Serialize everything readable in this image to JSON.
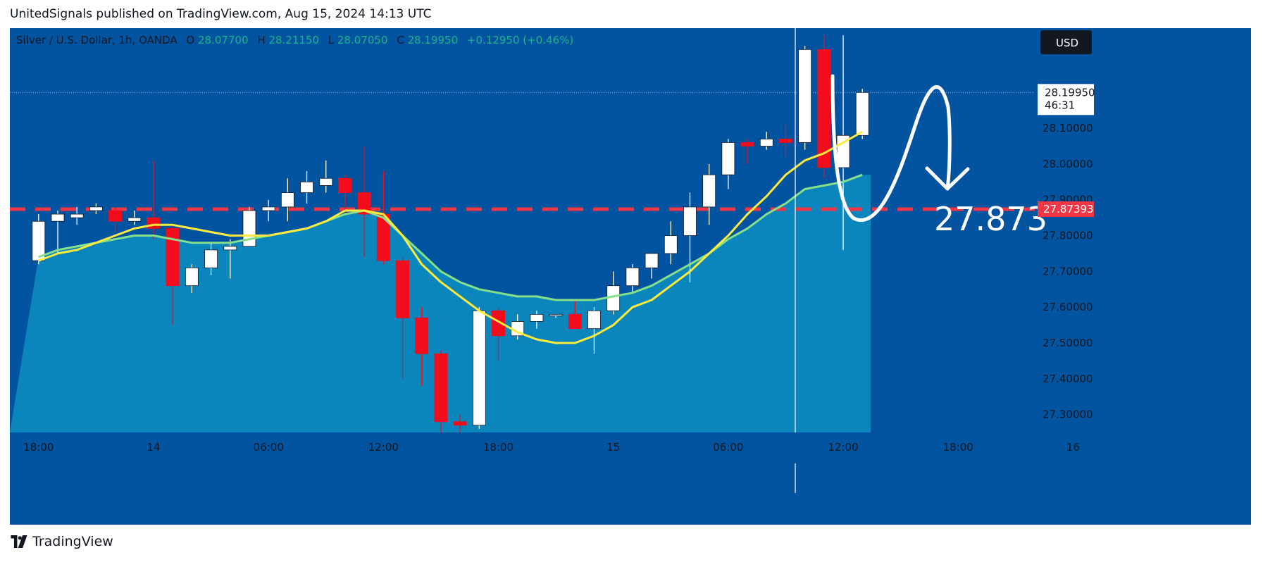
{
  "header": {
    "text": "UnitedSignals published on TradingView.com, Aug 15, 2024 14:13 UTC"
  },
  "legend": {
    "symbol": "Silver / U.S. Dollar, 1h, OANDA",
    "open_label": "O",
    "open": "28.07700",
    "high_label": "H",
    "high": "28.21150",
    "low_label": "L",
    "low": "28.07050",
    "close_label": "C",
    "close": "28.19950",
    "change": "+0.12950 (+0.46%)"
  },
  "currency_button": "USD",
  "price_tag": {
    "price": "28.19950",
    "countdown": "46:31"
  },
  "level_tag": "27.87393",
  "annotation": "27.873",
  "footer": {
    "brand": "TradingView"
  },
  "colors": {
    "background": "#0254a0",
    "bull": "#ffffff",
    "bear": "#f20c1c",
    "ema_fast": "#ffeb3b",
    "ema_slow": "#86e08a",
    "area": "#0a86bd",
    "level": "#f23645"
  },
  "chart_data": {
    "type": "candlestick",
    "ylim": [
      27.25,
      28.36
    ],
    "y_ticks": [
      27.3,
      27.4,
      27.5,
      27.6,
      27.7,
      27.8,
      27.9,
      28.0,
      28.1
    ],
    "y_tick_labels": [
      "27.30000",
      "27.40000",
      "27.50000",
      "27.60000",
      "27.70000",
      "27.80000",
      "27.90000",
      "28.00000",
      "28.10000"
    ],
    "x_index_range": [
      -1.5,
      52.0
    ],
    "x_ticks": [
      {
        "index": 0,
        "label": "18:00"
      },
      {
        "index": 6,
        "label": "14"
      },
      {
        "index": 12,
        "label": "06:00"
      },
      {
        "index": 18,
        "label": "12:00"
      },
      {
        "index": 24,
        "label": "18:00"
      },
      {
        "index": 30,
        "label": "15"
      },
      {
        "index": 36,
        "label": "06:00"
      },
      {
        "index": 42,
        "label": "12:00"
      },
      {
        "index": 48,
        "label": "18:00"
      },
      {
        "index": 54,
        "label": "16"
      }
    ],
    "level": 27.87393,
    "candles": [
      {
        "o": 27.73,
        "h": 27.86,
        "l": 27.72,
        "c": 27.84
      },
      {
        "o": 27.84,
        "h": 27.87,
        "l": 27.75,
        "c": 27.86
      },
      {
        "o": 27.85,
        "h": 27.88,
        "l": 27.83,
        "c": 27.86
      },
      {
        "o": 27.87,
        "h": 27.89,
        "l": 27.86,
        "c": 27.88
      },
      {
        "o": 27.87,
        "h": 27.88,
        "l": 27.81,
        "c": 27.84
      },
      {
        "o": 27.84,
        "h": 27.87,
        "l": 27.83,
        "c": 27.85
      },
      {
        "o": 27.85,
        "h": 28.01,
        "l": 27.79,
        "c": 27.82
      },
      {
        "o": 27.82,
        "h": 27.83,
        "l": 27.55,
        "c": 27.66
      },
      {
        "o": 27.66,
        "h": 27.72,
        "l": 27.64,
        "c": 27.71
      },
      {
        "o": 27.71,
        "h": 27.78,
        "l": 27.69,
        "c": 27.76
      },
      {
        "o": 27.76,
        "h": 27.79,
        "l": 27.68,
        "c": 27.77
      },
      {
        "o": 27.77,
        "h": 27.88,
        "l": 27.77,
        "c": 27.87
      },
      {
        "o": 27.87,
        "h": 27.9,
        "l": 27.84,
        "c": 27.88
      },
      {
        "o": 27.88,
        "h": 27.96,
        "l": 27.84,
        "c": 27.92
      },
      {
        "o": 27.92,
        "h": 27.98,
        "l": 27.89,
        "c": 27.95
      },
      {
        "o": 27.94,
        "h": 28.01,
        "l": 27.92,
        "c": 27.96
      },
      {
        "o": 27.96,
        "h": 27.97,
        "l": 27.86,
        "c": 27.92
      },
      {
        "o": 27.92,
        "h": 28.05,
        "l": 27.74,
        "c": 27.86
      },
      {
        "o": 27.86,
        "h": 27.98,
        "l": 27.72,
        "c": 27.73
      },
      {
        "o": 27.73,
        "h": 27.74,
        "l": 27.4,
        "c": 27.57
      },
      {
        "o": 27.57,
        "h": 27.6,
        "l": 27.38,
        "c": 27.47
      },
      {
        "o": 27.47,
        "h": 27.48,
        "l": 27.25,
        "c": 27.28
      },
      {
        "o": 27.28,
        "h": 27.3,
        "l": 27.25,
        "c": 27.27
      },
      {
        "o": 27.27,
        "h": 27.6,
        "l": 27.26,
        "c": 27.59
      },
      {
        "o": 27.59,
        "h": 27.6,
        "l": 27.45,
        "c": 27.52
      },
      {
        "o": 27.52,
        "h": 27.58,
        "l": 27.51,
        "c": 27.56
      },
      {
        "o": 27.56,
        "h": 27.59,
        "l": 27.54,
        "c": 27.58
      },
      {
        "o": 27.58,
        "h": 27.58,
        "l": 27.57,
        "c": 27.58
      },
      {
        "o": 27.58,
        "h": 27.62,
        "l": 27.54,
        "c": 27.54
      },
      {
        "o": 27.54,
        "h": 27.6,
        "l": 27.47,
        "c": 27.59
      },
      {
        "o": 27.59,
        "h": 27.7,
        "l": 27.58,
        "c": 27.66
      },
      {
        "o": 27.66,
        "h": 27.72,
        "l": 27.64,
        "c": 27.71
      },
      {
        "o": 27.71,
        "h": 27.74,
        "l": 27.68,
        "c": 27.75
      },
      {
        "o": 27.75,
        "h": 27.84,
        "l": 27.72,
        "c": 27.8
      },
      {
        "o": 27.8,
        "h": 27.92,
        "l": 27.67,
        "c": 27.88
      },
      {
        "o": 27.88,
        "h": 28.0,
        "l": 27.83,
        "c": 27.97
      },
      {
        "o": 27.97,
        "h": 28.07,
        "l": 27.93,
        "c": 28.06
      },
      {
        "o": 28.06,
        "h": 28.07,
        "l": 28.0,
        "c": 28.05
      },
      {
        "o": 28.05,
        "h": 28.09,
        "l": 28.04,
        "c": 28.07
      },
      {
        "o": 28.07,
        "h": 28.11,
        "l": 28.02,
        "c": 28.06
      },
      {
        "o": 28.06,
        "h": 28.33,
        "l": 28.04,
        "c": 28.32
      },
      {
        "o": 28.32,
        "h": 28.36,
        "l": 27.96,
        "c": 27.99
      },
      {
        "o": 27.99,
        "h": 28.36,
        "l": 27.76,
        "c": 28.08
      },
      {
        "o": 28.08,
        "h": 28.21,
        "l": 28.07,
        "c": 28.2
      }
    ],
    "series": [
      {
        "values": [
          27.73,
          27.75,
          27.76,
          27.78,
          27.8,
          27.82,
          27.83,
          27.83,
          27.82,
          27.81,
          27.8,
          27.8,
          27.8,
          27.81,
          27.82,
          27.84,
          27.87,
          27.87,
          27.86,
          27.8,
          27.72,
          27.67,
          27.63,
          27.59,
          27.56,
          27.53,
          27.51,
          27.5,
          27.5,
          27.52,
          27.55,
          27.6,
          27.62,
          27.66,
          27.7,
          27.75,
          27.8,
          27.86,
          27.91,
          27.97,
          28.01,
          28.03,
          28.06,
          28.09
        ]
      },
      {
        "values": [
          27.74,
          27.76,
          27.77,
          27.78,
          27.79,
          27.8,
          27.8,
          27.79,
          27.78,
          27.78,
          27.78,
          27.79,
          27.8,
          27.81,
          27.82,
          27.84,
          27.86,
          27.87,
          27.85,
          27.8,
          27.75,
          27.7,
          27.67,
          27.65,
          27.64,
          27.63,
          27.63,
          27.62,
          27.62,
          27.62,
          27.63,
          27.64,
          27.66,
          27.69,
          27.72,
          27.75,
          27.79,
          27.82,
          27.86,
          27.89,
          27.93,
          27.94,
          27.95,
          27.97
        ]
      }
    ]
  }
}
